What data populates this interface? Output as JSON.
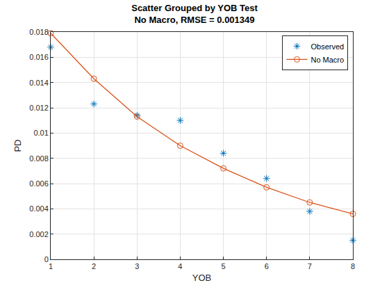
{
  "chart_data": {
    "type": "scatter",
    "title": "Scatter Grouped by YOB Test",
    "subtitle": "No Macro, RMSE = 0.001349",
    "x_label": "YOB",
    "y_label": "PD",
    "x": [
      1,
      2,
      3,
      4,
      5,
      6,
      7,
      8
    ],
    "series": [
      {
        "name": "Observed",
        "type": "scatter",
        "marker": "asterisk",
        "color": "#0072BD",
        "values": [
          0.0168,
          0.0123,
          0.0114,
          0.011,
          0.0084,
          0.0064,
          0.0038,
          0.0015
        ]
      },
      {
        "name": "No Macro",
        "type": "line",
        "marker": "circle",
        "line_style": "solid",
        "color": "#D95319",
        "values": [
          0.0179,
          0.0143,
          0.0113,
          0.009,
          0.0072,
          0.0057,
          0.0045,
          0.0036
        ]
      }
    ],
    "xlim": [
      1,
      8
    ],
    "xticks": [
      1,
      2,
      3,
      4,
      5,
      6,
      7,
      8
    ],
    "ylim": [
      0,
      0.018
    ],
    "yticks": [
      0,
      0.002,
      0.004,
      0.006,
      0.008,
      0.01,
      0.012,
      0.014,
      0.016,
      0.018
    ],
    "grid": true,
    "legend": "top-right"
  }
}
